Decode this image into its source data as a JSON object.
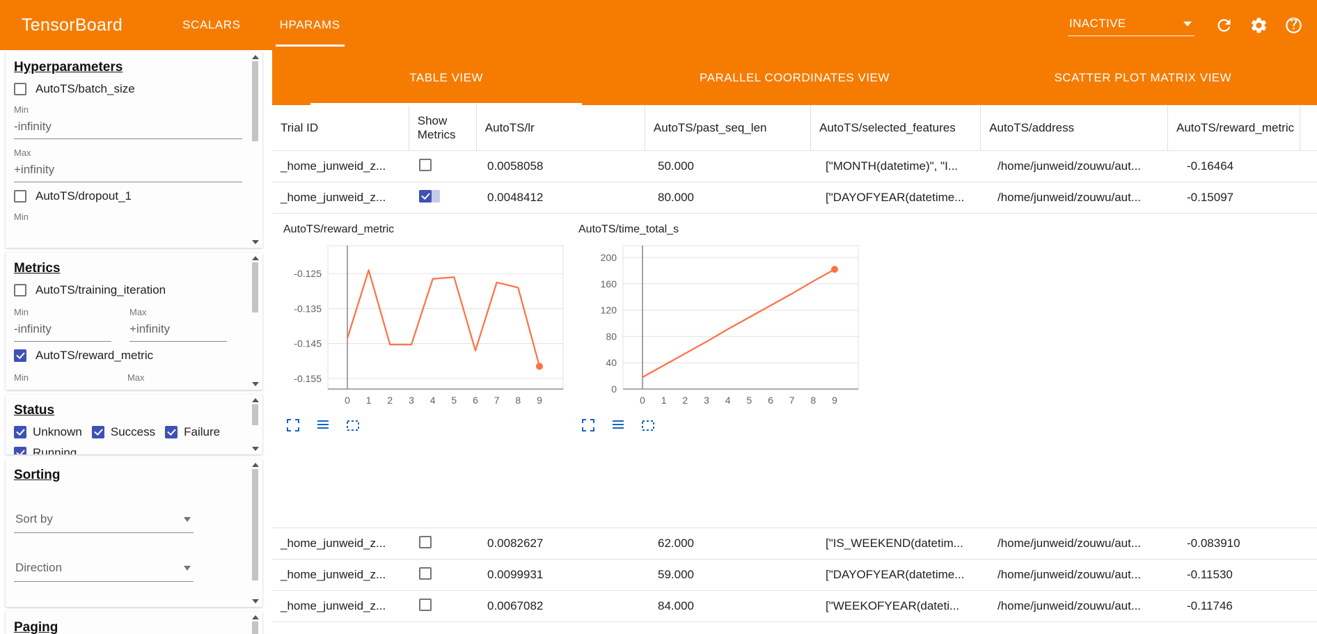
{
  "header": {
    "title": "TensorBoard",
    "nav_tabs": [
      {
        "label": "SCALARS",
        "active": false
      },
      {
        "label": "HPARAMS",
        "active": true
      }
    ],
    "runs_selector_value": "INACTIVE",
    "icons": {
      "runs_caret": "chevron-down-icon",
      "reload": "reload-icon",
      "settings": "gear-icon",
      "help": "help-icon"
    }
  },
  "sidebar": {
    "hyperparameters": {
      "heading": "Hyperparameters",
      "params": [
        {
          "label": "AutoTS/batch_size",
          "checked": false,
          "min_label": "Min",
          "min_value": "-infinity",
          "max_label": "Max",
          "max_value": "+infinity"
        },
        {
          "label": "AutoTS/dropout_1",
          "checked": false,
          "min_label": "Min"
        }
      ]
    },
    "metrics": {
      "heading": "Metrics",
      "items": [
        {
          "label": "AutoTS/training_iteration",
          "checked": false,
          "min_label": "Min",
          "min_value": "-infinity",
          "max_label": "Max",
          "max_value": "+infinity"
        },
        {
          "label": "AutoTS/reward_metric",
          "checked": true,
          "min_label": "Min",
          "max_label": "Max"
        }
      ]
    },
    "status": {
      "heading": "Status",
      "options": [
        {
          "label": "Unknown",
          "checked": true
        },
        {
          "label": "Success",
          "checked": true
        },
        {
          "label": "Failure",
          "checked": true
        },
        {
          "label": "Running",
          "checked": true
        }
      ]
    },
    "sorting": {
      "heading": "Sorting",
      "sort_by_placeholder": "Sort by",
      "direction_placeholder": "Direction"
    },
    "paging": {
      "heading": "Paging"
    }
  },
  "main": {
    "view_tabs": [
      {
        "label": "TABLE VIEW",
        "active": true
      },
      {
        "label": "PARALLEL COORDINATES VIEW",
        "active": false
      },
      {
        "label": "SCATTER PLOT MATRIX VIEW",
        "active": false
      }
    ],
    "table": {
      "columns": [
        "Trial ID",
        "Show Metrics",
        "AutoTS/lr",
        "AutoTS/past_seq_len",
        "AutoTS/selected_features",
        "AutoTS/address",
        "AutoTS/reward_metric"
      ],
      "rows": [
        {
          "trial_id": "_home_junweid_z...",
          "show_metrics": false,
          "lr": "0.0058058",
          "past_seq_len": "50.000",
          "selected_features": "[\"MONTH(datetime)\", \"I...",
          "address": "/home/junweid/zouwu/aut...",
          "reward_metric": "-0.16464"
        },
        {
          "trial_id": "_home_junweid_z...",
          "show_metrics": true,
          "lr": "0.0048412",
          "past_seq_len": "80.000",
          "selected_features": "[\"DAYOFYEAR(datetime...",
          "address": "/home/junweid/zouwu/aut...",
          "reward_metric": "-0.15097"
        },
        {
          "trial_id": "_home_junweid_z...",
          "show_metrics": false,
          "lr": "0.0082627",
          "past_seq_len": "62.000",
          "selected_features": "[\"IS_WEEKEND(datetim...",
          "address": "/home/junweid/zouwu/aut...",
          "reward_metric": "-0.083910"
        },
        {
          "trial_id": "_home_junweid_z...",
          "show_metrics": false,
          "lr": "0.0099931",
          "past_seq_len": "59.000",
          "selected_features": "[\"DAYOFYEAR(datetime...",
          "address": "/home/junweid/zouwu/aut...",
          "reward_metric": "-0.11530"
        },
        {
          "trial_id": "_home_junweid_z...",
          "show_metrics": false,
          "lr": "0.0067082",
          "past_seq_len": "84.000",
          "selected_features": "[\"WEEKOFYEAR(dateti...",
          "address": "/home/junweid/zouwu/aut...",
          "reward_metric": "-0.11746"
        }
      ]
    }
  },
  "chart_data": [
    {
      "type": "line",
      "title": "AutoTS/reward_metric",
      "x": [
        0,
        1,
        2,
        3,
        4,
        5,
        6,
        7,
        8,
        9
      ],
      "values": [
        -0.1435,
        -0.124,
        -0.1453,
        -0.1453,
        -0.1265,
        -0.126,
        -0.147,
        -0.1275,
        -0.129,
        -0.1515
      ],
      "ylim": [
        -0.158,
        -0.117
      ],
      "ytick_values": [
        -0.125,
        -0.135,
        -0.145,
        -0.155
      ],
      "ytick_labels": [
        "-0.125",
        "-0.135",
        "-0.145",
        "-0.155"
      ],
      "xtick_labels": [
        "0",
        "1",
        "2",
        "3",
        "4",
        "5",
        "6",
        "7",
        "8",
        "9"
      ],
      "line_color": "#ff7043",
      "grid": true,
      "endpoint_dot": true,
      "legend": "none"
    },
    {
      "type": "line",
      "title": "AutoTS/time_total_s",
      "x": [
        0,
        1,
        2,
        3,
        4,
        5,
        6,
        7,
        8,
        9
      ],
      "values": [
        18,
        36,
        54,
        72,
        91,
        109,
        127,
        145,
        164,
        182
      ],
      "ylim": [
        0,
        218
      ],
      "ytick_values": [
        0,
        40,
        80,
        120,
        160,
        200
      ],
      "ytick_labels": [
        "0",
        "40",
        "80",
        "120",
        "160",
        "200"
      ],
      "xtick_labels": [
        "0",
        "1",
        "2",
        "3",
        "4",
        "5",
        "6",
        "7",
        "8",
        "9"
      ],
      "line_color": "#ff7043",
      "grid": true,
      "endpoint_dot": true,
      "legend": "none"
    }
  ],
  "colors": {
    "accent_orange": "#f57c00",
    "checkbox_blue": "#3f51b5",
    "chart_line": "#ff7043",
    "chart_icon_blue": "#1565c0"
  }
}
